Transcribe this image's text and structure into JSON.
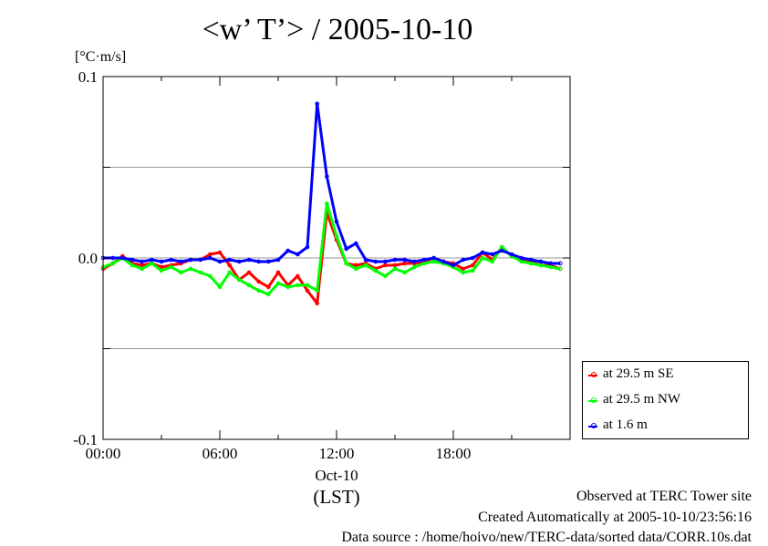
{
  "chart_data": {
    "type": "line",
    "title": "<w’ T’> / 2005-10-10",
    "ylabel": "[°C·m/s]",
    "xlabel": "(LST)",
    "x_date_label": "Oct-10",
    "ylim": [
      -0.1,
      0.1
    ],
    "xlim_hours": [
      0,
      24
    ],
    "yticks": [
      -0.1,
      -0.05,
      0.0,
      0.05,
      0.1
    ],
    "ytick_labels": [
      "-0.1",
      "",
      "0.0",
      "",
      "0.1"
    ],
    "xticks": [
      0,
      6,
      12,
      18
    ],
    "xtick_labels": [
      "00:00",
      "06:00",
      "12:00",
      "18:00"
    ],
    "grid": true,
    "legend_position": "bottom-right outside",
    "x_hours": [
      0,
      0.5,
      1,
      1.5,
      2,
      2.5,
      3,
      3.5,
      4,
      4.5,
      5,
      5.5,
      6,
      6.5,
      7,
      7.5,
      8,
      8.5,
      9,
      9.5,
      10,
      10.5,
      11,
      11.5,
      12,
      12.5,
      13,
      13.5,
      14,
      14.5,
      15,
      15.5,
      16,
      16.5,
      17,
      17.5,
      18,
      18.5,
      19,
      19.5,
      20,
      20.5,
      21,
      21.5,
      22,
      22.5,
      23,
      23.5
    ],
    "series": [
      {
        "name": "at 29.5 m SE",
        "color": "#ff0000",
        "values": [
          -0.006,
          -0.003,
          0.001,
          -0.003,
          -0.004,
          -0.003,
          -0.005,
          -0.004,
          -0.003,
          -0.001,
          -0.001,
          0.002,
          0.003,
          -0.004,
          -0.012,
          -0.008,
          -0.013,
          -0.016,
          -0.008,
          -0.015,
          -0.01,
          -0.018,
          -0.025,
          0.025,
          0.01,
          -0.003,
          -0.004,
          -0.003,
          -0.006,
          -0.004,
          -0.004,
          -0.003,
          -0.003,
          -0.002,
          0.0,
          -0.002,
          -0.003,
          -0.006,
          -0.004,
          0.003,
          -0.001,
          0.006,
          0.001,
          -0.001,
          -0.002,
          -0.004,
          -0.004,
          -0.006
        ]
      },
      {
        "name": "at 29.5 m NW",
        "color": "#00ff00",
        "values": [
          -0.005,
          -0.003,
          0.0,
          -0.004,
          -0.006,
          -0.003,
          -0.007,
          -0.005,
          -0.008,
          -0.006,
          -0.008,
          -0.01,
          -0.016,
          -0.008,
          -0.012,
          -0.015,
          -0.018,
          -0.02,
          -0.014,
          -0.016,
          -0.015,
          -0.015,
          -0.018,
          0.03,
          0.012,
          -0.003,
          -0.006,
          -0.004,
          -0.007,
          -0.01,
          -0.006,
          -0.008,
          -0.005,
          -0.003,
          -0.002,
          -0.003,
          -0.005,
          -0.008,
          -0.007,
          0.0,
          -0.002,
          0.006,
          0.001,
          -0.002,
          -0.003,
          -0.004,
          -0.005,
          -0.006
        ]
      },
      {
        "name": "at 1.6 m",
        "color": "#0000ff",
        "values": [
          0.0,
          0.0,
          0.0,
          -0.001,
          -0.002,
          -0.001,
          -0.002,
          -0.001,
          -0.002,
          -0.001,
          -0.001,
          0.0,
          -0.002,
          -0.001,
          -0.002,
          -0.001,
          -0.002,
          -0.002,
          -0.001,
          0.004,
          0.002,
          0.006,
          0.085,
          0.045,
          0.02,
          0.005,
          0.008,
          -0.001,
          -0.002,
          -0.002,
          -0.001,
          -0.001,
          -0.002,
          -0.001,
          0.0,
          -0.002,
          -0.004,
          -0.001,
          0.0,
          0.003,
          0.002,
          0.004,
          0.002,
          0.0,
          -0.001,
          -0.002,
          -0.003,
          -0.003
        ]
      }
    ]
  },
  "footer": {
    "line1": "Observed at TERC Tower site",
    "line2": "Created Automatically at 2005-10-10/23:56:16",
    "line3": "Data source : /home/hoivo/new/TERC-data/sorted  data/CORR.10s.dat"
  }
}
